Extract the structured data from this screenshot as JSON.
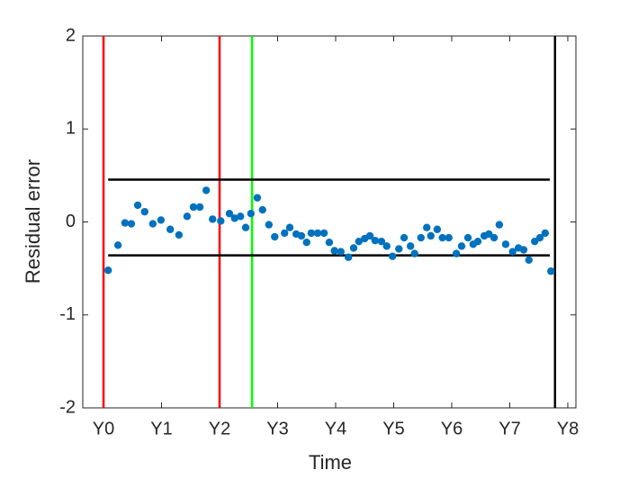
{
  "chart_data": {
    "type": "scatter",
    "xlabel": "Time",
    "ylabel": "Residual error",
    "xlim": [
      -0.357,
      8.14
    ],
    "ylim": [
      -2,
      2
    ],
    "xticks": [
      {
        "value": 0,
        "label": "Y0"
      },
      {
        "value": 1,
        "label": "Y1"
      },
      {
        "value": 2,
        "label": "Y2"
      },
      {
        "value": 3,
        "label": "Y3"
      },
      {
        "value": 4,
        "label": "Y4"
      },
      {
        "value": 5,
        "label": "Y5"
      },
      {
        "value": 6,
        "label": "Y6"
      },
      {
        "value": 7,
        "label": "Y7"
      },
      {
        "value": 8,
        "label": "Y8"
      }
    ],
    "yticks": [
      -2,
      -1,
      0,
      1,
      2
    ],
    "color": "#0072bd",
    "x": [
      0.08,
      0.25,
      0.37,
      0.48,
      0.59,
      0.71,
      0.85,
      0.99,
      1.15,
      1.3,
      1.44,
      1.55,
      1.66,
      1.77,
      1.88,
      2.02,
      2.17,
      2.26,
      2.36,
      2.45,
      2.54,
      2.65,
      2.74,
      2.85,
      2.95,
      3.12,
      3.21,
      3.32,
      3.41,
      3.5,
      3.58,
      3.69,
      3.8,
      3.89,
      3.98,
      4.09,
      4.22,
      4.31,
      4.4,
      4.5,
      4.59,
      4.68,
      4.79,
      4.88,
      4.98,
      5.09,
      5.18,
      5.29,
      5.36,
      5.47,
      5.57,
      5.64,
      5.75,
      5.84,
      5.95,
      6.08,
      6.17,
      6.28,
      6.37,
      6.45,
      6.56,
      6.64,
      6.73,
      6.82,
      6.93,
      7.05,
      7.15,
      7.24,
      7.33,
      7.43,
      7.52,
      7.61,
      7.71
    ],
    "values": [
      -0.52,
      -0.25,
      -0.01,
      -0.02,
      0.18,
      0.11,
      -0.02,
      0.02,
      -0.08,
      -0.14,
      0.06,
      0.16,
      0.16,
      0.34,
      0.03,
      0.01,
      0.09,
      0.04,
      0.06,
      -0.06,
      0.09,
      0.26,
      0.13,
      -0.03,
      -0.16,
      -0.12,
      -0.06,
      -0.13,
      -0.15,
      -0.22,
      -0.12,
      -0.12,
      -0.12,
      -0.22,
      -0.31,
      -0.32,
      -0.38,
      -0.28,
      -0.21,
      -0.18,
      -0.15,
      -0.2,
      -0.21,
      -0.26,
      -0.37,
      -0.29,
      -0.17,
      -0.26,
      -0.34,
      -0.17,
      -0.06,
      -0.15,
      -0.08,
      -0.17,
      -0.17,
      -0.34,
      -0.26,
      -0.17,
      -0.24,
      -0.21,
      -0.15,
      -0.13,
      -0.17,
      -0.03,
      -0.24,
      -0.32,
      -0.28,
      -0.3,
      -0.41,
      -0.21,
      -0.17,
      -0.12,
      -0.53
    ],
    "vlines": [
      {
        "x": 0,
        "color": "#ff0000"
      },
      {
        "x": 2,
        "color": "#ff0000"
      },
      {
        "x": 2.56,
        "color": "#00ff00"
      },
      {
        "x": 7.78,
        "color": "#000000"
      }
    ],
    "hlines": [
      {
        "y": 0.455,
        "x": [
          0.08,
          7.69
        ],
        "color": "#000000"
      },
      {
        "y": -0.36,
        "x": [
          0.08,
          7.69
        ],
        "color": "#000000"
      }
    ]
  }
}
